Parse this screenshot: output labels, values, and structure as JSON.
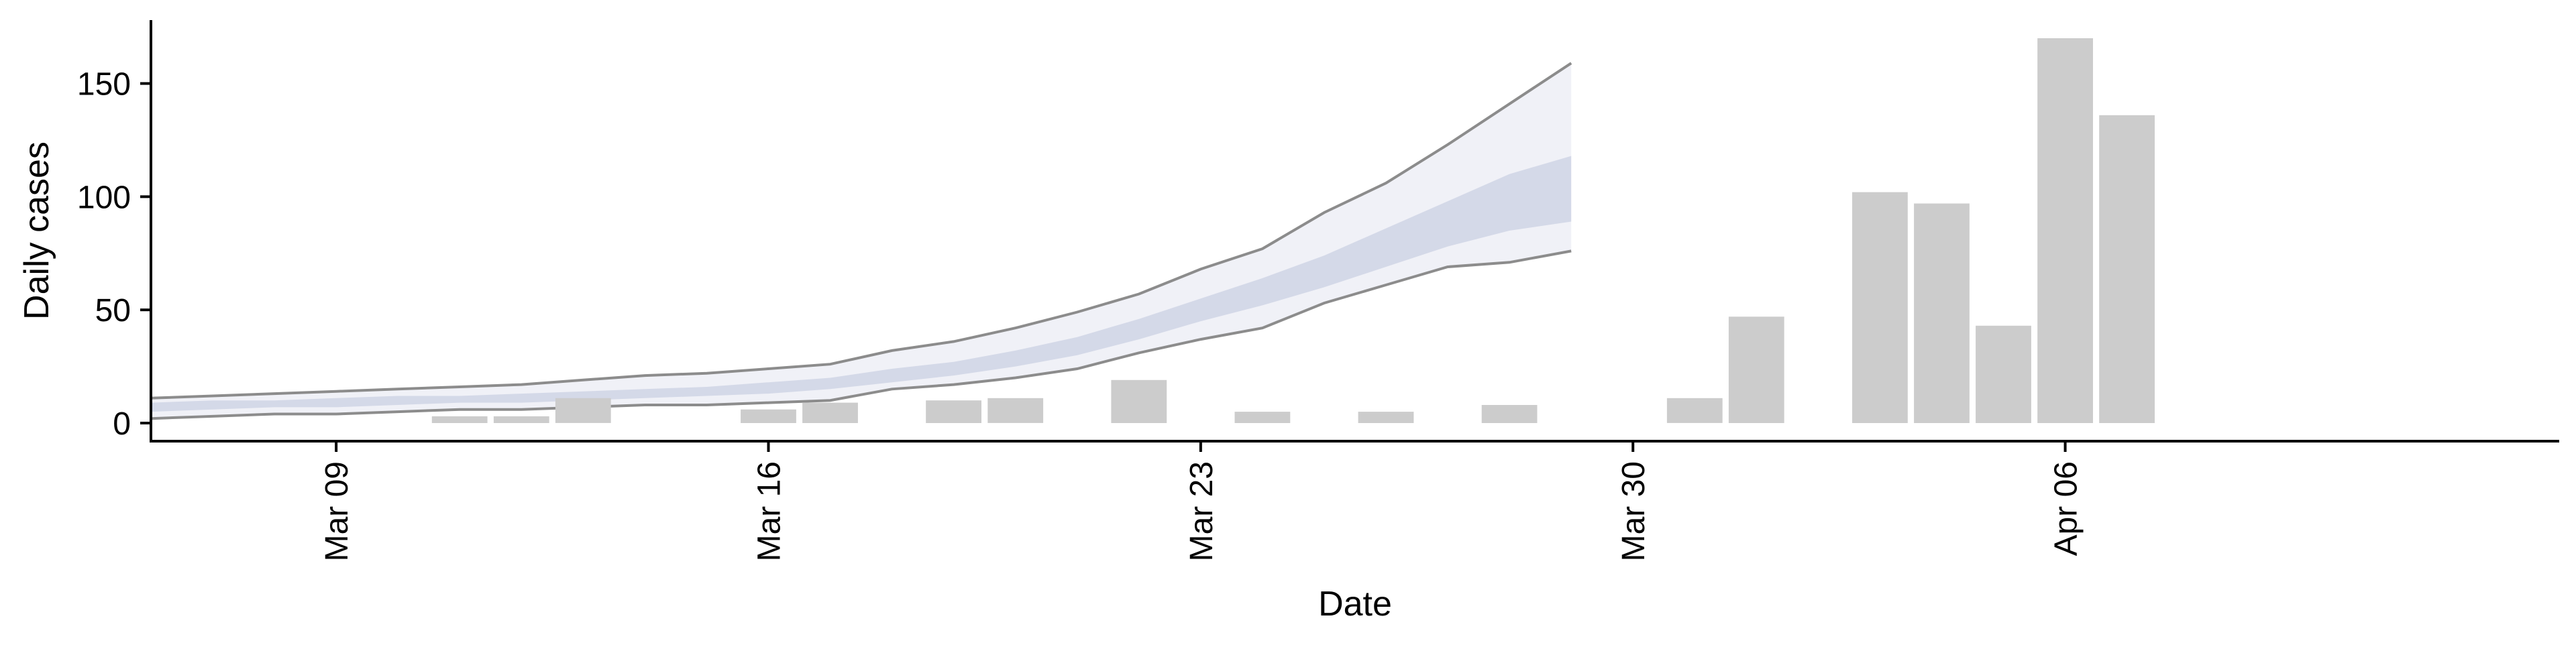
{
  "chart_data": {
    "type": "bar",
    "xlabel": "Date",
    "ylabel": "Daily cases",
    "x_ticks": [
      {
        "date": "2020-03-09",
        "label": "Mar 09"
      },
      {
        "date": "2020-03-16",
        "label": "Mar 16"
      },
      {
        "date": "2020-03-23",
        "label": "Mar 23"
      },
      {
        "date": "2020-03-30",
        "label": "Mar 30"
      },
      {
        "date": "2020-04-06",
        "label": "Apr 06"
      }
    ],
    "y_ticks": [
      0,
      50,
      100,
      150
    ],
    "xlim": [
      "2020-03-06",
      "2020-04-14"
    ],
    "ylim": [
      -8,
      178
    ],
    "grid": false,
    "colors": {
      "bars": "#cccccc",
      "band_outer": "#eef0f6",
      "band_inner": "#cbd0e3",
      "bound_line": "#8c8c8c"
    },
    "bars": [
      {
        "date": "2020-03-11",
        "value": 3
      },
      {
        "date": "2020-03-12",
        "value": 3
      },
      {
        "date": "2020-03-13",
        "value": 11
      },
      {
        "date": "2020-03-16",
        "value": 6
      },
      {
        "date": "2020-03-17",
        "value": 9
      },
      {
        "date": "2020-03-19",
        "value": 10
      },
      {
        "date": "2020-03-20",
        "value": 11
      },
      {
        "date": "2020-03-22",
        "value": 19
      },
      {
        "date": "2020-03-24",
        "value": 5
      },
      {
        "date": "2020-03-26",
        "value": 5
      },
      {
        "date": "2020-03-28",
        "value": 8
      },
      {
        "date": "2020-03-31",
        "value": 11
      },
      {
        "date": "2020-04-01",
        "value": 47
      },
      {
        "date": "2020-04-03",
        "value": 102
      },
      {
        "date": "2020-04-04",
        "value": 97
      },
      {
        "date": "2020-04-05",
        "value": 43
      },
      {
        "date": "2020-04-06",
        "value": 170
      },
      {
        "date": "2020-04-07",
        "value": 136
      }
    ],
    "estimate": {
      "dates": [
        "2020-03-06",
        "2020-03-07",
        "2020-03-08",
        "2020-03-09",
        "2020-03-10",
        "2020-03-11",
        "2020-03-12",
        "2020-03-13",
        "2020-03-14",
        "2020-03-15",
        "2020-03-16",
        "2020-03-17",
        "2020-03-18",
        "2020-03-19",
        "2020-03-20",
        "2020-03-21",
        "2020-03-22",
        "2020-03-23",
        "2020-03-24",
        "2020-03-25",
        "2020-03-26",
        "2020-03-27",
        "2020-03-28",
        "2020-03-29"
      ],
      "lower_90": [
        2,
        3,
        4,
        4,
        5,
        6,
        6,
        7,
        8,
        8,
        9,
        10,
        15,
        17,
        20,
        24,
        31,
        37,
        42,
        53,
        61,
        69,
        71,
        76
      ],
      "upper_90": [
        11,
        12,
        13,
        14,
        15,
        16,
        17,
        19,
        21,
        22,
        24,
        26,
        32,
        36,
        42,
        49,
        57,
        68,
        77,
        93,
        106,
        123,
        141,
        159
      ],
      "lower_50": [
        5,
        6,
        7,
        7,
        8,
        9,
        9,
        10,
        11,
        12,
        13,
        15,
        18,
        21,
        25,
        30,
        37,
        45,
        52,
        60,
        69,
        78,
        85,
        89
      ],
      "upper_50": [
        9,
        10,
        10,
        11,
        12,
        12,
        13,
        14,
        15,
        16,
        18,
        20,
        24,
        27,
        32,
        38,
        46,
        55,
        64,
        74,
        86,
        98,
        110,
        118
      ]
    }
  }
}
